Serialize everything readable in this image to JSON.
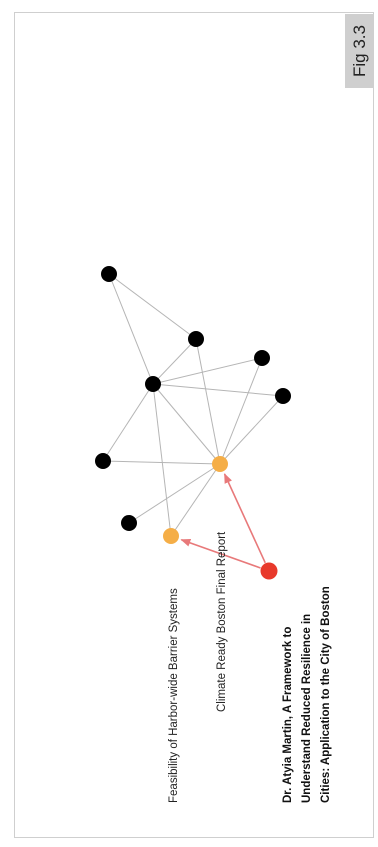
{
  "figure_label": "Fig 3.3",
  "colors": {
    "edge": "#b5b5b5",
    "arrow": "#e8797a",
    "node_default": "#000000",
    "node_report": "#f5ae47",
    "node_source": "#e8392b"
  },
  "nodes": [
    {
      "id": "n1",
      "kind": "default"
    },
    {
      "id": "n2",
      "kind": "default"
    },
    {
      "id": "n3",
      "kind": "default"
    },
    {
      "id": "n4",
      "kind": "default"
    },
    {
      "id": "n5",
      "kind": "default"
    },
    {
      "id": "n6",
      "kind": "default"
    },
    {
      "id": "n7",
      "kind": "default"
    },
    {
      "id": "climate",
      "kind": "report",
      "label": "Climate Ready Boston Final Report"
    },
    {
      "id": "harbor",
      "kind": "report",
      "label": "Feasibility of Harbor-wide Barrier Systems"
    },
    {
      "id": "martin",
      "kind": "source",
      "label_lines": [
        "Dr. Atyia Martin, A Framework to",
        "Understand Reduced Resilience in",
        "Cities: Application to the City of Boston"
      ]
    }
  ],
  "edges": [
    [
      "n1",
      "n2"
    ],
    [
      "n1",
      "n3"
    ],
    [
      "n3",
      "n2"
    ],
    [
      "n3",
      "n4"
    ],
    [
      "n3",
      "n5"
    ],
    [
      "n3",
      "n6"
    ],
    [
      "n3",
      "climate"
    ],
    [
      "n3",
      "harbor"
    ],
    [
      "n2",
      "climate"
    ],
    [
      "n4",
      "climate"
    ],
    [
      "n5",
      "climate"
    ],
    [
      "n6",
      "climate"
    ],
    [
      "n7",
      "climate"
    ],
    [
      "harbor",
      "climate"
    ]
  ],
  "arrows": [
    [
      "martin",
      "climate"
    ],
    [
      "martin",
      "harbor"
    ]
  ]
}
